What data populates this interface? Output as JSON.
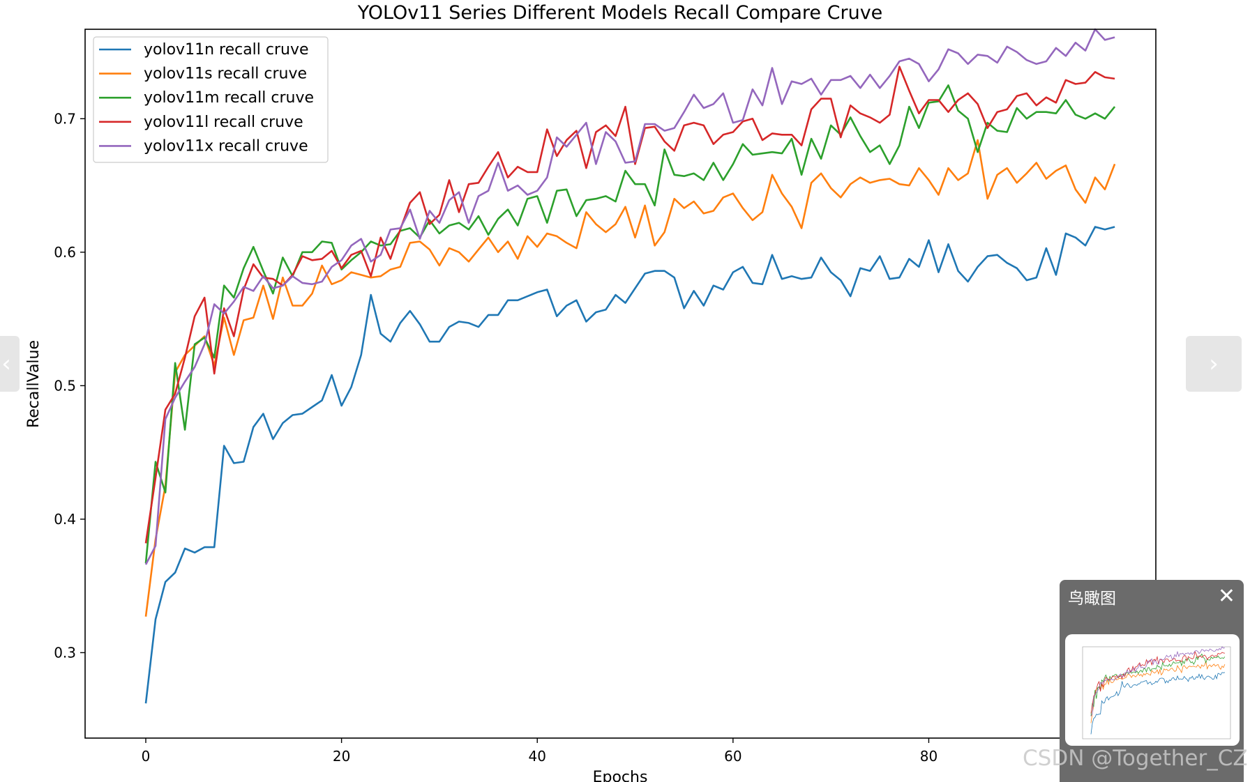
{
  "chart_data": {
    "type": "line",
    "title": "YOLOv11 Series Different Models Recall Compare Cruve",
    "xlabel": "Epochs",
    "ylabel": "RecallValue",
    "xlim": [
      -6.2,
      103.2
    ],
    "ylim": [
      0.236,
      0.767
    ],
    "xticks": [
      0,
      20,
      40,
      60,
      80
    ],
    "yticks": [
      0.3,
      0.4,
      0.5,
      0.6,
      0.7
    ],
    "legend_position": "upper-left",
    "grid": false,
    "series": [
      {
        "name": "yolov11n recall cruve",
        "color": "#1f77b4",
        "x_start": 0,
        "values": [
          0.262,
          0.325,
          0.353,
          0.36,
          0.378,
          0.375,
          0.379,
          0.379,
          0.455,
          0.442,
          0.443,
          0.469,
          0.479,
          0.46,
          0.472,
          0.478,
          0.479,
          0.484,
          0.489,
          0.508,
          0.485,
          0.499,
          0.523,
          0.568,
          0.539,
          0.533,
          0.547,
          0.556,
          0.546,
          0.533,
          0.533,
          0.544,
          0.548,
          0.547,
          0.544,
          0.553,
          0.553,
          0.564,
          0.564,
          0.567,
          0.57,
          0.572,
          0.552,
          0.56,
          0.564,
          0.548,
          0.555,
          0.557,
          0.568,
          0.562,
          0.573,
          0.584,
          0.586,
          0.586,
          0.581,
          0.558,
          0.571,
          0.56,
          0.575,
          0.572,
          0.585,
          0.589,
          0.577,
          0.576,
          0.598,
          0.58,
          0.582,
          0.58,
          0.581,
          0.596,
          0.585,
          0.579,
          0.567,
          0.588,
          0.586,
          0.597,
          0.58,
          0.581,
          0.595,
          0.589,
          0.609,
          0.585,
          0.606,
          0.586,
          0.578,
          0.589,
          0.597,
          0.598,
          0.592,
          0.588,
          0.579,
          0.581,
          0.603,
          0.583,
          0.614,
          0.611,
          0.605,
          0.619,
          0.617,
          0.619
        ]
      },
      {
        "name": "yolov11s recall cruve",
        "color": "#ff7f0e",
        "x_start": 0,
        "values": [
          0.327,
          0.385,
          0.425,
          0.51,
          0.523,
          0.53,
          0.537,
          0.515,
          0.551,
          0.523,
          0.549,
          0.551,
          0.575,
          0.55,
          0.581,
          0.56,
          0.56,
          0.569,
          0.59,
          0.576,
          0.579,
          0.585,
          0.583,
          0.581,
          0.582,
          0.587,
          0.589,
          0.607,
          0.608,
          0.602,
          0.59,
          0.603,
          0.6,
          0.593,
          0.602,
          0.611,
          0.6,
          0.608,
          0.595,
          0.612,
          0.604,
          0.614,
          0.612,
          0.607,
          0.603,
          0.63,
          0.621,
          0.615,
          0.621,
          0.634,
          0.611,
          0.635,
          0.605,
          0.615,
          0.64,
          0.633,
          0.638,
          0.629,
          0.631,
          0.641,
          0.644,
          0.633,
          0.624,
          0.63,
          0.658,
          0.644,
          0.634,
          0.618,
          0.652,
          0.659,
          0.648,
          0.641,
          0.651,
          0.656,
          0.652,
          0.654,
          0.655,
          0.651,
          0.65,
          0.663,
          0.654,
          0.643,
          0.663,
          0.654,
          0.659,
          0.684,
          0.64,
          0.658,
          0.663,
          0.652,
          0.659,
          0.667,
          0.655,
          0.661,
          0.665,
          0.647,
          0.637,
          0.656,
          0.647,
          0.666
        ]
      },
      {
        "name": "yolov11m recall cruve",
        "color": "#2ca02c",
        "x_start": 0,
        "values": [
          0.367,
          0.443,
          0.42,
          0.517,
          0.467,
          0.531,
          0.536,
          0.521,
          0.575,
          0.566,
          0.588,
          0.604,
          0.586,
          0.569,
          0.596,
          0.582,
          0.6,
          0.6,
          0.608,
          0.607,
          0.587,
          0.594,
          0.6,
          0.608,
          0.605,
          0.606,
          0.616,
          0.618,
          0.611,
          0.624,
          0.614,
          0.62,
          0.622,
          0.617,
          0.627,
          0.613,
          0.625,
          0.632,
          0.62,
          0.64,
          0.642,
          0.622,
          0.646,
          0.647,
          0.627,
          0.639,
          0.64,
          0.642,
          0.638,
          0.661,
          0.651,
          0.651,
          0.635,
          0.677,
          0.658,
          0.657,
          0.659,
          0.654,
          0.667,
          0.654,
          0.666,
          0.681,
          0.673,
          0.674,
          0.675,
          0.674,
          0.685,
          0.658,
          0.685,
          0.67,
          0.695,
          0.688,
          0.701,
          0.687,
          0.675,
          0.68,
          0.666,
          0.68,
          0.709,
          0.693,
          0.712,
          0.713,
          0.725,
          0.706,
          0.7,
          0.675,
          0.697,
          0.691,
          0.69,
          0.708,
          0.7,
          0.705,
          0.705,
          0.704,
          0.714,
          0.703,
          0.7,
          0.704,
          0.7,
          0.709
        ]
      },
      {
        "name": "yolov11l recall cruve",
        "color": "#d62728",
        "x_start": 0,
        "values": [
          0.382,
          0.431,
          0.482,
          0.494,
          0.521,
          0.552,
          0.566,
          0.509,
          0.558,
          0.537,
          0.572,
          0.591,
          0.581,
          0.58,
          0.575,
          0.583,
          0.597,
          0.594,
          0.595,
          0.601,
          0.588,
          0.598,
          0.601,
          0.582,
          0.611,
          0.595,
          0.617,
          0.637,
          0.645,
          0.621,
          0.628,
          0.654,
          0.63,
          0.651,
          0.652,
          0.664,
          0.675,
          0.656,
          0.664,
          0.66,
          0.66,
          0.692,
          0.672,
          0.684,
          0.691,
          0.663,
          0.69,
          0.695,
          0.687,
          0.709,
          0.666,
          0.693,
          0.694,
          0.683,
          0.676,
          0.695,
          0.697,
          0.695,
          0.681,
          0.688,
          0.69,
          0.698,
          0.7,
          0.684,
          0.689,
          0.688,
          0.688,
          0.68,
          0.707,
          0.715,
          0.715,
          0.686,
          0.71,
          0.704,
          0.701,
          0.697,
          0.703,
          0.739,
          0.721,
          0.704,
          0.714,
          0.714,
          0.705,
          0.714,
          0.719,
          0.711,
          0.693,
          0.705,
          0.707,
          0.717,
          0.719,
          0.71,
          0.716,
          0.712,
          0.729,
          0.726,
          0.727,
          0.735,
          0.731,
          0.73
        ]
      },
      {
        "name": "yolov11x recall cruve",
        "color": "#9467bd",
        "x_start": 0,
        "values": [
          0.366,
          0.38,
          0.475,
          0.491,
          0.503,
          0.514,
          0.531,
          0.561,
          0.554,
          0.563,
          0.574,
          0.571,
          0.582,
          0.573,
          0.575,
          0.582,
          0.577,
          0.576,
          0.578,
          0.589,
          0.594,
          0.605,
          0.61,
          0.593,
          0.598,
          0.617,
          0.618,
          0.632,
          0.61,
          0.631,
          0.622,
          0.639,
          0.645,
          0.622,
          0.642,
          0.646,
          0.667,
          0.646,
          0.65,
          0.643,
          0.646,
          0.656,
          0.686,
          0.679,
          0.688,
          0.697,
          0.666,
          0.69,
          0.683,
          0.667,
          0.668,
          0.696,
          0.696,
          0.691,
          0.693,
          0.705,
          0.718,
          0.708,
          0.711,
          0.719,
          0.697,
          0.699,
          0.722,
          0.71,
          0.738,
          0.711,
          0.728,
          0.726,
          0.73,
          0.718,
          0.729,
          0.729,
          0.732,
          0.723,
          0.733,
          0.723,
          0.732,
          0.743,
          0.745,
          0.741,
          0.728,
          0.737,
          0.752,
          0.749,
          0.741,
          0.748,
          0.747,
          0.742,
          0.754,
          0.75,
          0.744,
          0.741,
          0.743,
          0.753,
          0.747,
          0.757,
          0.751,
          0.767,
          0.759,
          0.761
        ]
      }
    ]
  },
  "ui": {
    "nav_prev_glyph": "‹",
    "nav_next_glyph": "›",
    "minimap_title": "鸟瞰图",
    "minimap_close_glyph": "✕",
    "watermark": "CSDN @Together_CZ"
  }
}
